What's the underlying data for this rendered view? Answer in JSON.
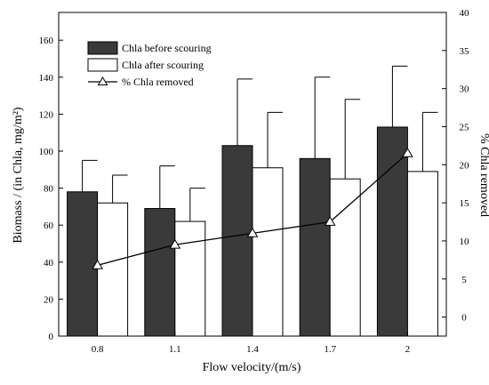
{
  "chart_data": {
    "type": "bar",
    "title": "",
    "xlabel": "Flow velocity/(m/s)",
    "ylabel": "Biomass / (in Chla, mg/m²)",
    "y2label": "% Chla removed",
    "categories": [
      "0.8",
      "1.1",
      "1.4",
      "1.7",
      "2"
    ],
    "ylim": [
      0,
      175
    ],
    "yticks": [
      0,
      20,
      40,
      60,
      80,
      100,
      120,
      140,
      160
    ],
    "y2lim": [
      -2.5,
      40
    ],
    "y2ticks": [
      0,
      5,
      10,
      15,
      20,
      25,
      30,
      35,
      40
    ],
    "legend_position": "top-left",
    "grid": false,
    "series": [
      {
        "name": "Chla before scouring",
        "kind": "bar",
        "color": "#3a3a3a",
        "values": [
          78,
          69,
          103,
          96,
          113
        ],
        "error_upper": [
          95,
          92,
          139,
          140,
          146
        ],
        "axis": "left"
      },
      {
        "name": "Chla after scouring",
        "kind": "bar",
        "color": "#ffffff",
        "values": [
          72,
          62,
          91,
          85,
          89
        ],
        "error_upper": [
          87,
          80,
          121,
          128,
          121
        ],
        "axis": "left"
      },
      {
        "name": "% Chla removed",
        "kind": "line",
        "marker": "triangle-open",
        "color": "#000000",
        "values": [
          6.8,
          9.5,
          11,
          12.5,
          21.5
        ],
        "axis": "right"
      }
    ]
  }
}
